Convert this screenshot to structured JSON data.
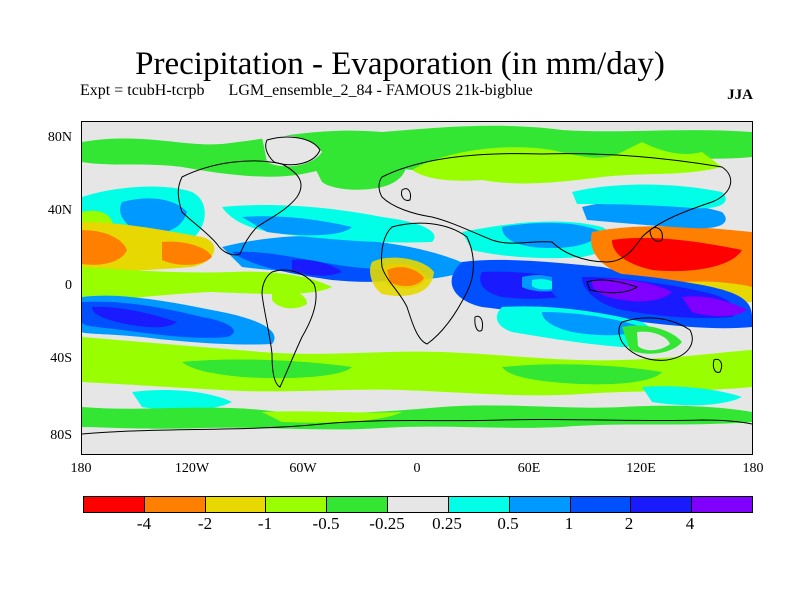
{
  "title": "Precipitation - Evaporation (in mm/day)",
  "subtitle_left": "Expt = tcubH-tcrpb      LGM_ensemble_2_84 - FAMOUS 21k-bigblue",
  "subtitle_right": "JJA",
  "y_axis_labels": [
    "80N",
    "40N",
    "0",
    "40S",
    "80S"
  ],
  "x_axis_labels": [
    "180",
    "120W",
    "60W",
    "0",
    "60E",
    "120E",
    "180"
  ],
  "colorbar": {
    "colors": [
      "#ff0000",
      "#ff8000",
      "#e6d800",
      "#99ff00",
      "#33e633",
      "#e6e6e6",
      "#00ffe6",
      "#0099ff",
      "#0050ff",
      "#1a1aff",
      "#8000ff"
    ],
    "labels": [
      "-4",
      "-2",
      "-1",
      "-0.5",
      "-0.25",
      "0.25",
      "0.5",
      "1",
      "2",
      "4"
    ]
  },
  "legend": {
    "red": "#ff0000",
    "orange": "#ff8000",
    "yellow": "#e6d800",
    "lime": "#99ff00",
    "green": "#33e633",
    "grey": "#e6e6e6",
    "cyan": "#00ffe6",
    "sky": "#0099ff",
    "blue": "#0050ff",
    "deep_blue": "#1a1aff",
    "violet": "#8000ff"
  }
}
